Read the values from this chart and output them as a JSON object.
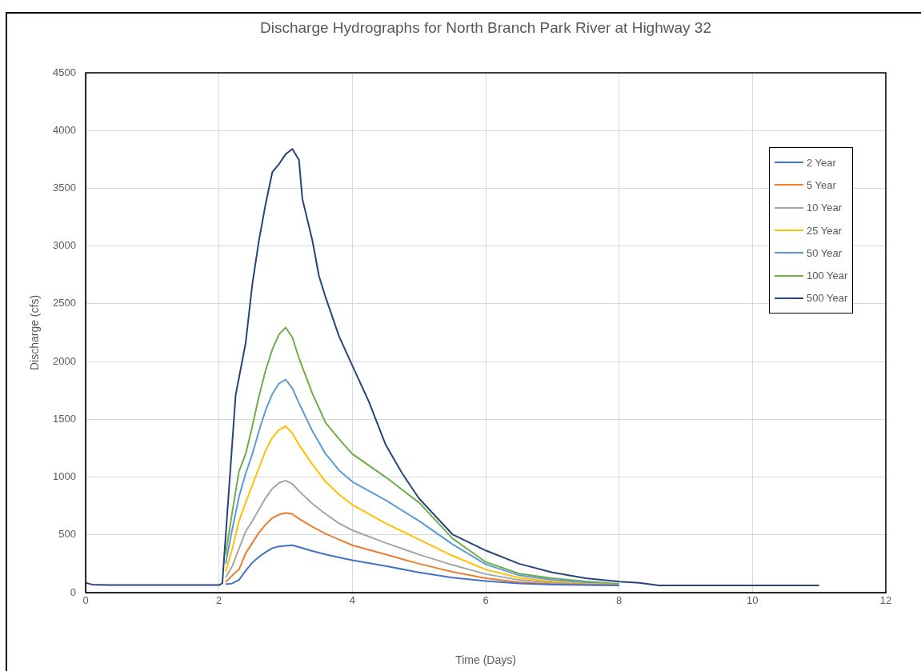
{
  "chart_data": {
    "type": "line",
    "title": "Discharge Hydrographs for North Branch Park River at Highway 32",
    "xlabel": "Time (Days)",
    "ylabel": "Discharge (cfs)",
    "x": [
      2.1,
      2.2,
      2.3,
      2.4,
      2.5,
      2.6,
      2.7,
      2.8,
      2.9,
      3.0,
      3.1,
      3.2,
      3.4,
      3.6,
      3.8,
      4.0,
      4.5,
      5.0,
      5.5,
      6.0,
      6.5,
      7.0,
      7.5,
      8.0
    ],
    "series": [
      {
        "name": "2 Year",
        "color": "#4472c4",
        "values": [
          72,
          80,
          110,
          190,
          260,
          310,
          350,
          385,
          400,
          405,
          410,
          395,
          360,
          330,
          305,
          280,
          230,
          175,
          130,
          100,
          80,
          70,
          66,
          63
        ]
      },
      {
        "name": "5 Year",
        "color": "#ed7d31",
        "values": [
          90,
          150,
          200,
          340,
          430,
          520,
          590,
          645,
          675,
          690,
          680,
          640,
          570,
          510,
          460,
          410,
          330,
          250,
          180,
          125,
          90,
          75,
          68,
          64
        ]
      },
      {
        "name": "10 Year",
        "color": "#a5a5a5",
        "values": [
          130,
          230,
          380,
          530,
          620,
          720,
          820,
          900,
          950,
          970,
          940,
          880,
          770,
          680,
          600,
          540,
          430,
          330,
          240,
          160,
          110,
          85,
          72,
          65
        ]
      },
      {
        "name": "25 Year",
        "color": "#ffc000",
        "values": [
          180,
          380,
          620,
          780,
          930,
          1080,
          1230,
          1340,
          1410,
          1440,
          1380,
          1280,
          1110,
          960,
          850,
          760,
          600,
          460,
          320,
          200,
          130,
          95,
          78,
          68
        ]
      },
      {
        "name": "50 Year",
        "color": "#5b9bd5",
        "values": [
          250,
          550,
          830,
          1030,
          1200,
          1400,
          1580,
          1720,
          1810,
          1845,
          1770,
          1640,
          1400,
          1200,
          1060,
          960,
          800,
          620,
          420,
          245,
          150,
          110,
          88,
          70
        ]
      },
      {
        "name": "100 Year",
        "color": "#70ad47",
        "values": [
          330,
          700,
          1050,
          1200,
          1440,
          1700,
          1925,
          2105,
          2235,
          2295,
          2210,
          2030,
          1725,
          1470,
          1330,
          1200,
          1000,
          780,
          470,
          265,
          165,
          125,
          97,
          76
        ]
      },
      {
        "name": "500 Year",
        "color": "#264478",
        "x": [
          0,
          0.1,
          0.35,
          2.0,
          2.05,
          2.25,
          2.4,
          2.5,
          2.6,
          2.7,
          2.8,
          2.9,
          3.0,
          3.1,
          3.2,
          3.25,
          3.4,
          3.5,
          3.6,
          3.8,
          4.0,
          4.25,
          4.5,
          4.75,
          5.0,
          5.5,
          6.0,
          6.5,
          7.0,
          7.5,
          8.0,
          8.3,
          8.6,
          11
        ],
        "values": [
          85,
          70,
          65,
          65,
          80,
          1710,
          2160,
          2670,
          3050,
          3365,
          3640,
          3710,
          3795,
          3840,
          3745,
          3410,
          3050,
          2740,
          2555,
          2220,
          1965,
          1650,
          1280,
          1030,
          815,
          505,
          365,
          250,
          175,
          125,
          95,
          85,
          62,
          62
        ]
      }
    ],
    "xlim": [
      0,
      12
    ],
    "xticks": [
      0,
      2,
      4,
      6,
      8,
      10,
      12
    ],
    "ylim": [
      0,
      4500
    ],
    "yticks": [
      0,
      500,
      1000,
      1500,
      2000,
      2500,
      3000,
      3500,
      4000,
      4500
    ],
    "grid": true,
    "legend": "top right",
    "marker": "none",
    "line_style": "solid"
  }
}
